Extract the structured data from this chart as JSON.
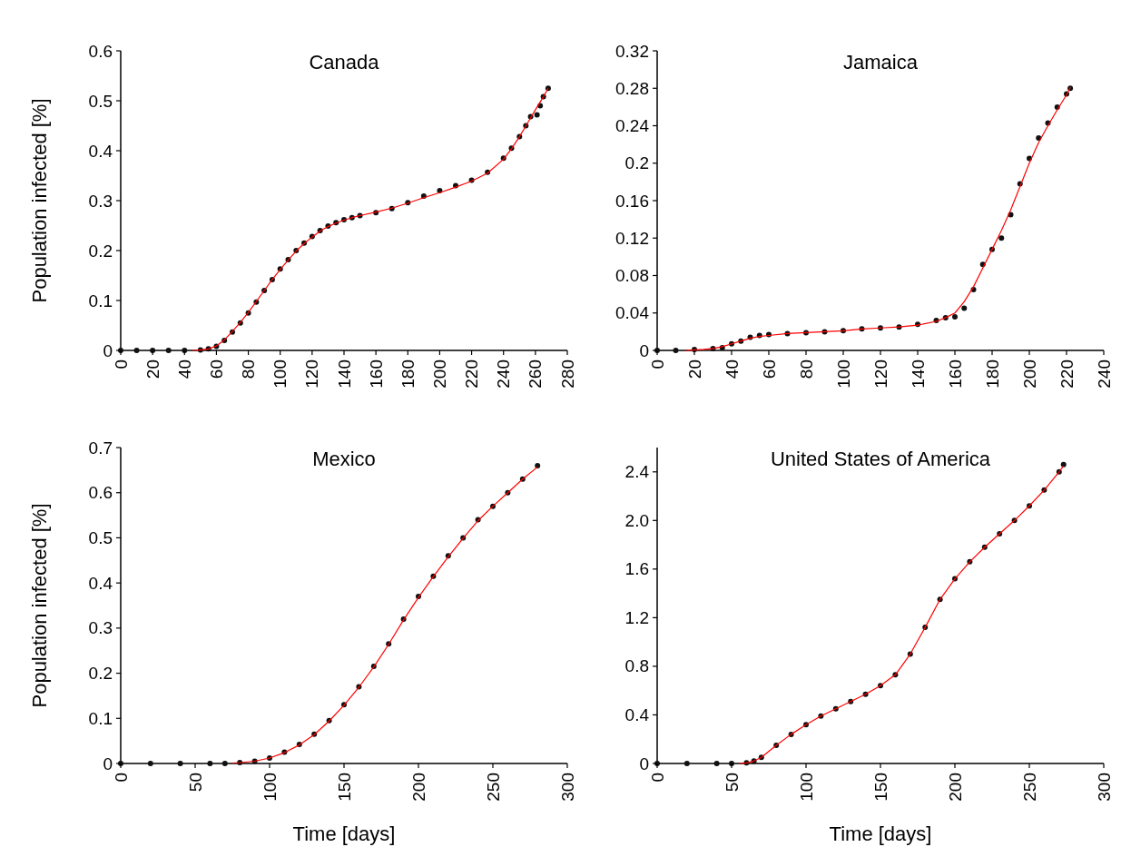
{
  "chart_data": [
    {
      "type": "line",
      "title": "Canada",
      "ylabel": "Population infected [%]",
      "xlim": [
        0,
        280
      ],
      "xticks": [
        0,
        20,
        40,
        60,
        80,
        100,
        120,
        140,
        160,
        180,
        200,
        220,
        240,
        260,
        280
      ],
      "ylim": [
        0,
        0.6
      ],
      "yticks": [
        0,
        0.1,
        0.2,
        0.3,
        0.4,
        0.5,
        0.6
      ],
      "grid": false,
      "series": [
        {
          "type": "scatter",
          "marker": "circle",
          "color": "#111111",
          "x": [
            0,
            10,
            20,
            30,
            40,
            50,
            55,
            60,
            65,
            70,
            75,
            80,
            85,
            90,
            95,
            100,
            105,
            110,
            115,
            120,
            125,
            130,
            135,
            140,
            145,
            150,
            160,
            170,
            180,
            190,
            200,
            210,
            220,
            230,
            240,
            245,
            250,
            254,
            257,
            261,
            263,
            265,
            268
          ],
          "values": [
            0,
            0,
            0,
            0,
            0,
            0.001,
            0.003,
            0.008,
            0.02,
            0.037,
            0.055,
            0.075,
            0.097,
            0.12,
            0.142,
            0.163,
            0.182,
            0.2,
            0.215,
            0.228,
            0.24,
            0.249,
            0.256,
            0.262,
            0.266,
            0.27,
            0.276,
            0.284,
            0.296,
            0.309,
            0.32,
            0.33,
            0.341,
            0.357,
            0.385,
            0.405,
            0.428,
            0.45,
            0.468,
            0.472,
            0.49,
            0.508,
            0.525
          ]
        },
        {
          "marker": "none",
          "color": "#ff0000",
          "x": [
            45,
            50,
            55,
            60,
            65,
            70,
            75,
            80,
            85,
            90,
            95,
            100,
            105,
            110,
            115,
            120,
            125,
            130,
            135,
            140,
            145,
            150,
            160,
            170,
            180,
            190,
            200,
            210,
            220,
            230,
            240,
            245,
            250,
            255,
            260,
            265,
            268
          ],
          "values": [
            0,
            0.001,
            0.003,
            0.009,
            0.021,
            0.038,
            0.056,
            0.076,
            0.098,
            0.12,
            0.142,
            0.162,
            0.181,
            0.199,
            0.214,
            0.227,
            0.239,
            0.248,
            0.255,
            0.261,
            0.266,
            0.27,
            0.277,
            0.285,
            0.295,
            0.306,
            0.316,
            0.327,
            0.339,
            0.355,
            0.383,
            0.404,
            0.428,
            0.455,
            0.482,
            0.508,
            0.525
          ]
        }
      ]
    },
    {
      "type": "line",
      "title": "Jamaica",
      "xlim": [
        0,
        240
      ],
      "xticks": [
        0,
        20,
        40,
        60,
        80,
        100,
        120,
        140,
        160,
        180,
        200,
        220,
        240
      ],
      "ylim": [
        0,
        0.32
      ],
      "yticks": [
        0,
        0.04,
        0.08,
        0.12,
        0.16,
        0.2,
        0.24,
        0.28,
        0.32
      ],
      "grid": false,
      "series": [
        {
          "type": "scatter",
          "marker": "circle",
          "color": "#111111",
          "x": [
            0,
            10,
            20,
            30,
            35,
            40,
            45,
            50,
            55,
            60,
            70,
            80,
            90,
            100,
            110,
            120,
            130,
            140,
            150,
            155,
            160,
            165,
            170,
            175,
            180,
            185,
            190,
            195,
            200,
            205,
            210,
            215,
            220,
            222
          ],
          "values": [
            0,
            0,
            0.001,
            0.002,
            0.003,
            0.007,
            0.01,
            0.014,
            0.016,
            0.017,
            0.018,
            0.019,
            0.02,
            0.021,
            0.023,
            0.024,
            0.025,
            0.028,
            0.032,
            0.035,
            0.036,
            0.045,
            0.065,
            0.092,
            0.108,
            0.12,
            0.145,
            0.178,
            0.205,
            0.227,
            0.243,
            0.26,
            0.274,
            0.28
          ]
        },
        {
          "marker": "none",
          "color": "#ff0000",
          "x": [
            15,
            25,
            30,
            35,
            40,
            45,
            50,
            55,
            60,
            70,
            80,
            90,
            100,
            110,
            120,
            130,
            140,
            150,
            155,
            160,
            165,
            170,
            175,
            180,
            185,
            190,
            195,
            200,
            205,
            210,
            215,
            220,
            222
          ],
          "values": [
            0,
            0.001,
            0.002,
            0.004,
            0.007,
            0.01,
            0.013,
            0.015,
            0.016,
            0.018,
            0.019,
            0.02,
            0.021,
            0.023,
            0.024,
            0.025,
            0.027,
            0.031,
            0.035,
            0.04,
            0.052,
            0.068,
            0.088,
            0.108,
            0.128,
            0.15,
            0.175,
            0.2,
            0.222,
            0.24,
            0.257,
            0.273,
            0.281
          ]
        }
      ]
    },
    {
      "type": "line",
      "title": "Mexico",
      "ylabel": "Population infected [%]",
      "xlabel": "Time [days]",
      "xlim": [
        0,
        300
      ],
      "xticks": [
        0,
        50,
        100,
        150,
        200,
        250,
        300
      ],
      "ylim": [
        0,
        0.7
      ],
      "yticks": [
        0,
        0.1,
        0.2,
        0.3,
        0.4,
        0.5,
        0.6,
        0.7
      ],
      "grid": false,
      "series": [
        {
          "type": "scatter",
          "marker": "circle",
          "color": "#111111",
          "x": [
            0,
            20,
            40,
            60,
            70,
            80,
            90,
            100,
            110,
            120,
            130,
            140,
            150,
            160,
            170,
            180,
            190,
            200,
            210,
            220,
            230,
            240,
            250,
            260,
            270,
            280
          ],
          "values": [
            0,
            0,
            0,
            0,
            0,
            0.002,
            0.005,
            0.012,
            0.025,
            0.042,
            0.065,
            0.095,
            0.13,
            0.17,
            0.215,
            0.265,
            0.32,
            0.37,
            0.415,
            0.46,
            0.5,
            0.54,
            0.57,
            0.6,
            0.63,
            0.66
          ]
        },
        {
          "marker": "none",
          "color": "#ff0000",
          "x": [
            75,
            80,
            90,
            100,
            110,
            120,
            130,
            140,
            150,
            160,
            170,
            180,
            190,
            200,
            210,
            220,
            230,
            240,
            250,
            260,
            270,
            280
          ],
          "values": [
            0.001,
            0.002,
            0.005,
            0.012,
            0.024,
            0.041,
            0.064,
            0.094,
            0.129,
            0.169,
            0.214,
            0.264,
            0.318,
            0.368,
            0.414,
            0.458,
            0.499,
            0.538,
            0.57,
            0.6,
            0.63,
            0.657
          ]
        }
      ]
    },
    {
      "type": "line",
      "title": "United States of America",
      "xlabel": "Time [days]",
      "xlim": [
        0,
        300
      ],
      "xticks": [
        0,
        50,
        100,
        150,
        200,
        250,
        300
      ],
      "ylim": [
        0,
        2.6
      ],
      "yticks": [
        0,
        0.4,
        0.8,
        1.2,
        1.6,
        {
          "value": 2,
          "label": "2.0"
        },
        2.4
      ],
      "grid": false,
      "series": [
        {
          "type": "scatter",
          "marker": "circle",
          "color": "#111111",
          "x": [
            0,
            20,
            40,
            50,
            60,
            65,
            70,
            80,
            90,
            100,
            110,
            120,
            130,
            140,
            150,
            160,
            170,
            180,
            190,
            200,
            210,
            220,
            230,
            240,
            250,
            260,
            270,
            273
          ],
          "values": [
            0,
            0,
            0,
            0,
            0.005,
            0.02,
            0.05,
            0.15,
            0.24,
            0.32,
            0.39,
            0.45,
            0.51,
            0.57,
            0.64,
            0.73,
            0.9,
            1.12,
            1.35,
            1.52,
            1.66,
            1.78,
            1.89,
            2,
            2.12,
            2.25,
            2.4,
            2.46
          ]
        },
        {
          "marker": "none",
          "color": "#ff0000",
          "x": [
            55,
            60,
            65,
            70,
            80,
            90,
            100,
            110,
            120,
            130,
            140,
            150,
            160,
            170,
            180,
            190,
            200,
            210,
            220,
            230,
            240,
            250,
            260,
            270,
            273
          ],
          "values": [
            0,
            0.005,
            0.02,
            0.05,
            0.15,
            0.24,
            0.32,
            0.39,
            0.45,
            0.51,
            0.57,
            0.64,
            0.73,
            0.9,
            1.12,
            1.35,
            1.52,
            1.66,
            1.78,
            1.89,
            2,
            2.12,
            2.25,
            2.4,
            2.45
          ]
        }
      ]
    }
  ]
}
